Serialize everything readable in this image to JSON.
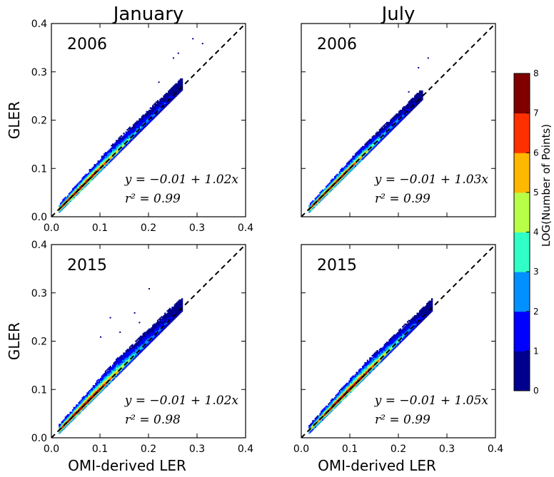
{
  "column_titles": [
    "January",
    "July"
  ],
  "colorbar": {
    "label": "LOG(Number of Points)",
    "ticks": [
      "0",
      "1",
      "2",
      "3",
      "4",
      "5",
      "6",
      "7",
      "8"
    ],
    "colors": [
      "#00008f",
      "#0000ff",
      "#0090ff",
      "#30ffc8",
      "#b8ff48",
      "#ffb800",
      "#ff3000",
      "#800000"
    ]
  },
  "chart_data": [
    {
      "type": "heatmap",
      "column": "January",
      "year": "2006",
      "ylabel": "GLER",
      "xlabel": "",
      "equation": "y = −0.01 + 1.02x",
      "r2": "r² = 0.99",
      "xlim": [
        0.0,
        0.4
      ],
      "ylim": [
        0.0,
        0.4
      ],
      "xticks": [
        "0.0",
        "0.1",
        "0.2",
        "0.3",
        "0.4"
      ],
      "yticks": [
        "0.0",
        "0.1",
        "0.2",
        "0.3",
        "0.4"
      ],
      "one_to_one_line": true,
      "cloud": {
        "x_start": 0.015,
        "x_end": 0.27,
        "slope": 1.0,
        "upper_spread": 0.03,
        "lower_spread": 0.006,
        "peak_x": 0.05
      },
      "outliers": [
        [
          0.25,
          0.33
        ],
        [
          0.26,
          0.34
        ],
        [
          0.29,
          0.37
        ],
        [
          0.31,
          0.36
        ],
        [
          0.22,
          0.28
        ]
      ]
    },
    {
      "type": "heatmap",
      "column": "July",
      "year": "2006",
      "ylabel": "",
      "xlabel": "",
      "equation": "y = −0.01 + 1.03x",
      "r2": "r² = 0.99",
      "xlim": [
        0.0,
        0.4
      ],
      "ylim": [
        0.0,
        0.4
      ],
      "xticks": [],
      "yticks": [],
      "one_to_one_line": true,
      "cloud": {
        "x_start": 0.015,
        "x_end": 0.25,
        "slope": 1.0,
        "upper_spread": 0.025,
        "lower_spread": 0.006,
        "peak_x": 0.05
      },
      "outliers": [
        [
          0.24,
          0.31
        ],
        [
          0.26,
          0.33
        ],
        [
          0.22,
          0.26
        ]
      ]
    },
    {
      "type": "heatmap",
      "column": "January",
      "year": "2015",
      "ylabel": "GLER",
      "xlabel": "OMI-derived LER",
      "equation": "y = −0.01 + 1.02x",
      "r2": "r² = 0.98",
      "xlim": [
        0.0,
        0.4
      ],
      "ylim": [
        0.0,
        0.4
      ],
      "xticks": [
        "0.0",
        "0.1",
        "0.2",
        "0.3",
        "0.4"
      ],
      "yticks": [
        "0.0",
        "0.1",
        "0.2",
        "0.3",
        "0.4"
      ],
      "one_to_one_line": true,
      "cloud": {
        "x_start": 0.015,
        "x_end": 0.27,
        "slope": 1.0,
        "upper_spread": 0.035,
        "lower_spread": 0.006,
        "peak_x": 0.06
      },
      "outliers": [
        [
          0.2,
          0.31
        ],
        [
          0.17,
          0.26
        ],
        [
          0.12,
          0.25
        ],
        [
          0.18,
          0.24
        ],
        [
          0.1,
          0.21
        ],
        [
          0.14,
          0.22
        ]
      ]
    },
    {
      "type": "heatmap",
      "column": "July",
      "year": "2015",
      "ylabel": "",
      "xlabel": "OMI-derived LER",
      "equation": "y = −0.01 + 1.05x",
      "r2": "r² = 0.99",
      "xlim": [
        0.0,
        0.4
      ],
      "ylim": [
        0.0,
        0.4
      ],
      "xticks": [
        "0.0",
        "0.1",
        "0.2",
        "0.3",
        "0.4"
      ],
      "yticks": [],
      "one_to_one_line": true,
      "cloud": {
        "x_start": 0.015,
        "x_end": 0.27,
        "slope": 1.0,
        "upper_spread": 0.03,
        "lower_spread": 0.006,
        "peak_x": 0.09
      },
      "outliers": []
    }
  ]
}
